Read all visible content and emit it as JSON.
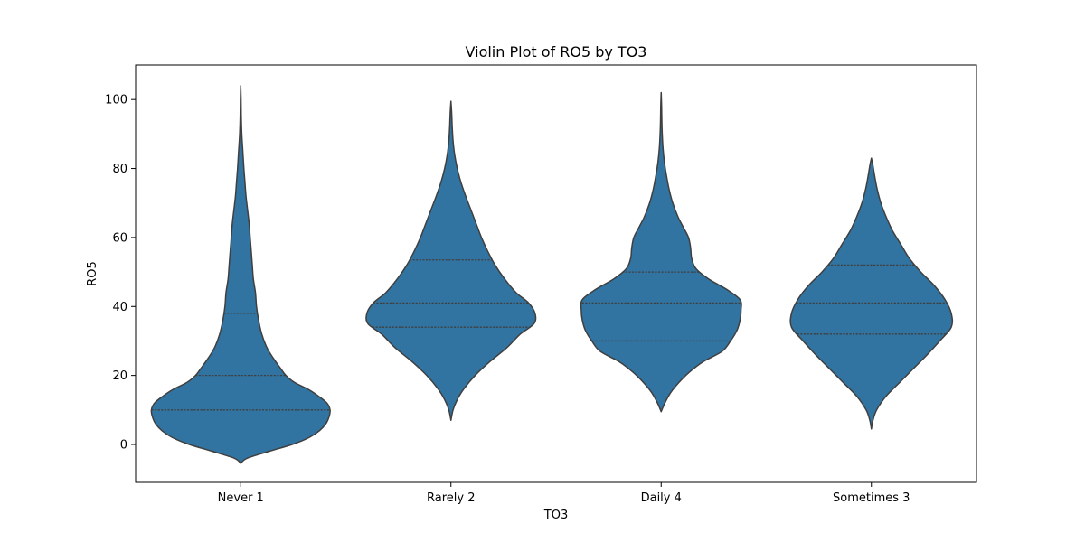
{
  "chart_data": {
    "type": "violin",
    "title": "Violin Plot of RO5 by TO3",
    "xlabel": "TO3",
    "ylabel": "RO5",
    "ylim": [
      -11,
      110
    ],
    "yticks": [
      0,
      20,
      40,
      60,
      80,
      100
    ],
    "grid": false,
    "fill_color": "#3274a1",
    "edge_color": "#3f3f3f",
    "categories": [
      "Never 1",
      "Rarely 2",
      "Daily 4",
      "Sometimes 3"
    ],
    "violins": [
      {
        "category": "Never 1",
        "quartiles": [
          10,
          20,
          38
        ],
        "profile": [
          [
            -5.5,
            0
          ],
          [
            -4,
            0.06
          ],
          [
            -2,
            0.27
          ],
          [
            0,
            0.49
          ],
          [
            2,
            0.65
          ],
          [
            4,
            0.75
          ],
          [
            6,
            0.81
          ],
          [
            8,
            0.84
          ],
          [
            10,
            0.85
          ],
          [
            12,
            0.82
          ],
          [
            14,
            0.74
          ],
          [
            16,
            0.64
          ],
          [
            18,
            0.51
          ],
          [
            20,
            0.43
          ],
          [
            22,
            0.38
          ],
          [
            25,
            0.31
          ],
          [
            28,
            0.25
          ],
          [
            32,
            0.2
          ],
          [
            36,
            0.17
          ],
          [
            40,
            0.15
          ],
          [
            44,
            0.14
          ],
          [
            48,
            0.12
          ],
          [
            52,
            0.11
          ],
          [
            56,
            0.1
          ],
          [
            60,
            0.09
          ],
          [
            64,
            0.08
          ],
          [
            68,
            0.065
          ],
          [
            72,
            0.05
          ],
          [
            76,
            0.04
          ],
          [
            80,
            0.03
          ],
          [
            85,
            0.02
          ],
          [
            90,
            0.01
          ],
          [
            95,
            0.005
          ],
          [
            100,
            0.003
          ],
          [
            104,
            0
          ]
        ]
      },
      {
        "category": "Rarely 2",
        "quartiles": [
          34,
          41,
          53.5
        ],
        "profile": [
          [
            7,
            0
          ],
          [
            10,
            0.02
          ],
          [
            13,
            0.06
          ],
          [
            16,
            0.12
          ],
          [
            20,
            0.23
          ],
          [
            24,
            0.37
          ],
          [
            28,
            0.53
          ],
          [
            32,
            0.66
          ],
          [
            35,
            0.79
          ],
          [
            38,
            0.8
          ],
          [
            41,
            0.74
          ],
          [
            44,
            0.62
          ],
          [
            48,
            0.51
          ],
          [
            52,
            0.42
          ],
          [
            56,
            0.35
          ],
          [
            60,
            0.29
          ],
          [
            64,
            0.24
          ],
          [
            68,
            0.19
          ],
          [
            72,
            0.14
          ],
          [
            76,
            0.095
          ],
          [
            80,
            0.06
          ],
          [
            84,
            0.035
          ],
          [
            88,
            0.02
          ],
          [
            92,
            0.012
          ],
          [
            96,
            0.007
          ],
          [
            99.5,
            0
          ]
        ]
      },
      {
        "category": "Daily 4",
        "quartiles": [
          30,
          41,
          50
        ],
        "profile": [
          [
            9.5,
            0
          ],
          [
            12,
            0.035
          ],
          [
            15,
            0.09
          ],
          [
            18,
            0.17
          ],
          [
            21,
            0.27
          ],
          [
            24,
            0.4
          ],
          [
            27,
            0.58
          ],
          [
            30,
            0.66
          ],
          [
            33,
            0.72
          ],
          [
            36,
            0.75
          ],
          [
            39,
            0.76
          ],
          [
            42,
            0.75
          ],
          [
            45,
            0.62
          ],
          [
            48,
            0.45
          ],
          [
            51,
            0.33
          ],
          [
            54,
            0.29
          ],
          [
            57,
            0.28
          ],
          [
            60,
            0.26
          ],
          [
            63,
            0.21
          ],
          [
            66,
            0.16
          ],
          [
            70,
            0.11
          ],
          [
            74,
            0.075
          ],
          [
            78,
            0.05
          ],
          [
            82,
            0.03
          ],
          [
            86,
            0.017
          ],
          [
            90,
            0.01
          ],
          [
            94,
            0.006
          ],
          [
            98,
            0.004
          ],
          [
            102,
            0
          ]
        ]
      },
      {
        "category": "Sometimes 3",
        "quartiles": [
          32,
          41,
          52
        ],
        "profile": [
          [
            4.5,
            0
          ],
          [
            7,
            0.015
          ],
          [
            10,
            0.05
          ],
          [
            14,
            0.14
          ],
          [
            18,
            0.27
          ],
          [
            22,
            0.4
          ],
          [
            26,
            0.53
          ],
          [
            30,
            0.65
          ],
          [
            34,
            0.76
          ],
          [
            38,
            0.76
          ],
          [
            42,
            0.7
          ],
          [
            46,
            0.6
          ],
          [
            50,
            0.47
          ],
          [
            54,
            0.36
          ],
          [
            58,
            0.28
          ],
          [
            62,
            0.2
          ],
          [
            66,
            0.14
          ],
          [
            70,
            0.09
          ],
          [
            74,
            0.055
          ],
          [
            78,
            0.03
          ],
          [
            81,
            0.014
          ],
          [
            83,
            0
          ]
        ]
      }
    ]
  }
}
